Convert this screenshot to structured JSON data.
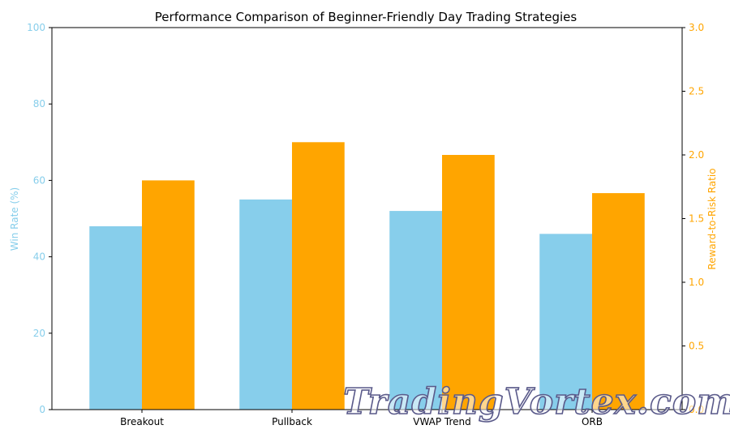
{
  "chart_data": {
    "type": "bar",
    "title": "Performance Comparison of Beginner-Friendly Day Trading Strategies",
    "categories": [
      "Breakout",
      "Pullback",
      "VWAP Trend",
      "ORB"
    ],
    "series": [
      {
        "name": "Win Rate (%)",
        "axis": "left",
        "color": "#87CEEB",
        "values": [
          48,
          55,
          52,
          46
        ]
      },
      {
        "name": "Reward-to-Risk Ratio",
        "axis": "right",
        "color": "#FFA500",
        "values": [
          1.8,
          2.1,
          2.0,
          1.7
        ]
      }
    ],
    "ylabel": "Win Rate (%)",
    "y2label": "Reward-to-Risk Ratio",
    "ylim": [
      0,
      100
    ],
    "y2lim": [
      0,
      3.0
    ],
    "yticks": [
      "0",
      "20",
      "40",
      "60",
      "80",
      "100"
    ],
    "y2ticks": [
      "0.0",
      "0.5",
      "1.0",
      "1.5",
      "2.0",
      "2.5",
      "3.0"
    ],
    "grid": false,
    "legend": "none"
  },
  "watermark": {
    "text": "TradingVortex.com"
  },
  "colors": {
    "left_axis": "#87CEEB",
    "right_axis": "#FFA500",
    "frame": "#000000"
  }
}
